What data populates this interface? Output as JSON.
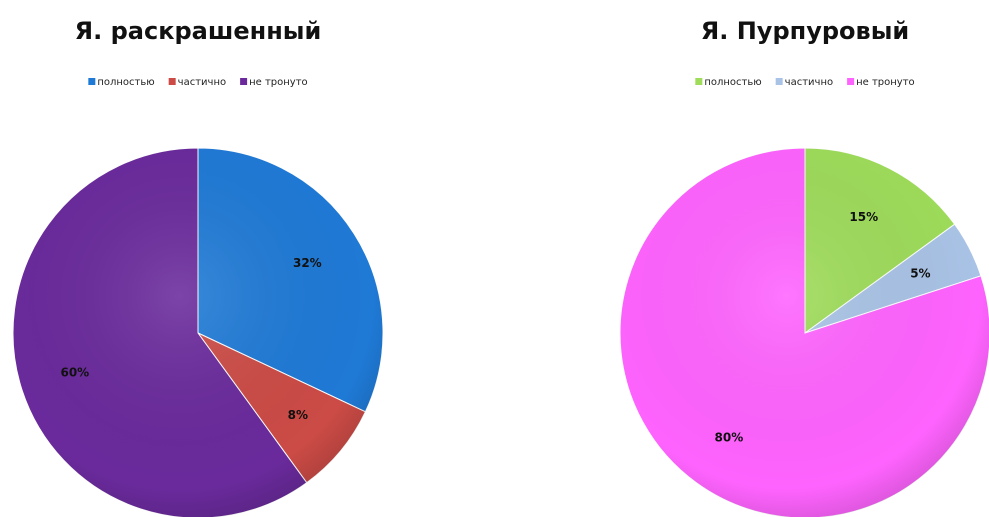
{
  "chart_data": [
    {
      "type": "pie",
      "title": "Я. раскрашенный",
      "categories": [
        "полностью",
        "частично",
        "не тронуто"
      ],
      "values": [
        32,
        8,
        60
      ],
      "value_labels": [
        "32%",
        "8%",
        "60%"
      ],
      "colors": [
        "#1f7ad6",
        "#cc4b46",
        "#6a2a9c"
      ],
      "legend": "top"
    },
    {
      "type": "pie",
      "title": "Я. Пурпуровый",
      "categories": [
        "полностью",
        "частично",
        "не тронуто"
      ],
      "values": [
        15,
        5,
        80
      ],
      "value_labels": [
        "15%",
        "5%",
        "80%"
      ],
      "colors": [
        "#9edc5a",
        "#a9c3e6",
        "#ff63ff"
      ],
      "legend": "top"
    }
  ]
}
